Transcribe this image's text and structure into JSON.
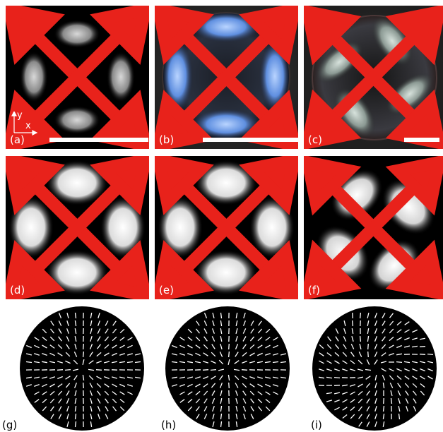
{
  "panels": [
    {
      "id": "a",
      "label": "(a)"
    },
    {
      "id": "b",
      "label": "(b)"
    },
    {
      "id": "c",
      "label": "(c)"
    },
    {
      "id": "d",
      "label": "(d)"
    },
    {
      "id": "e",
      "label": "(e)"
    },
    {
      "id": "f",
      "label": "(f)"
    },
    {
      "id": "g",
      "label": "(g)"
    },
    {
      "id": "h",
      "label": "(h)"
    },
    {
      "id": "i",
      "label": "(i)"
    }
  ],
  "axes": {
    "y": "y",
    "x": "x"
  },
  "colors": {
    "polarizer_cross": "#e8221b",
    "background": "#000000",
    "line": "#ffffff"
  },
  "icons": {
    "polarizer": "crossed-polarizers-icon"
  }
}
